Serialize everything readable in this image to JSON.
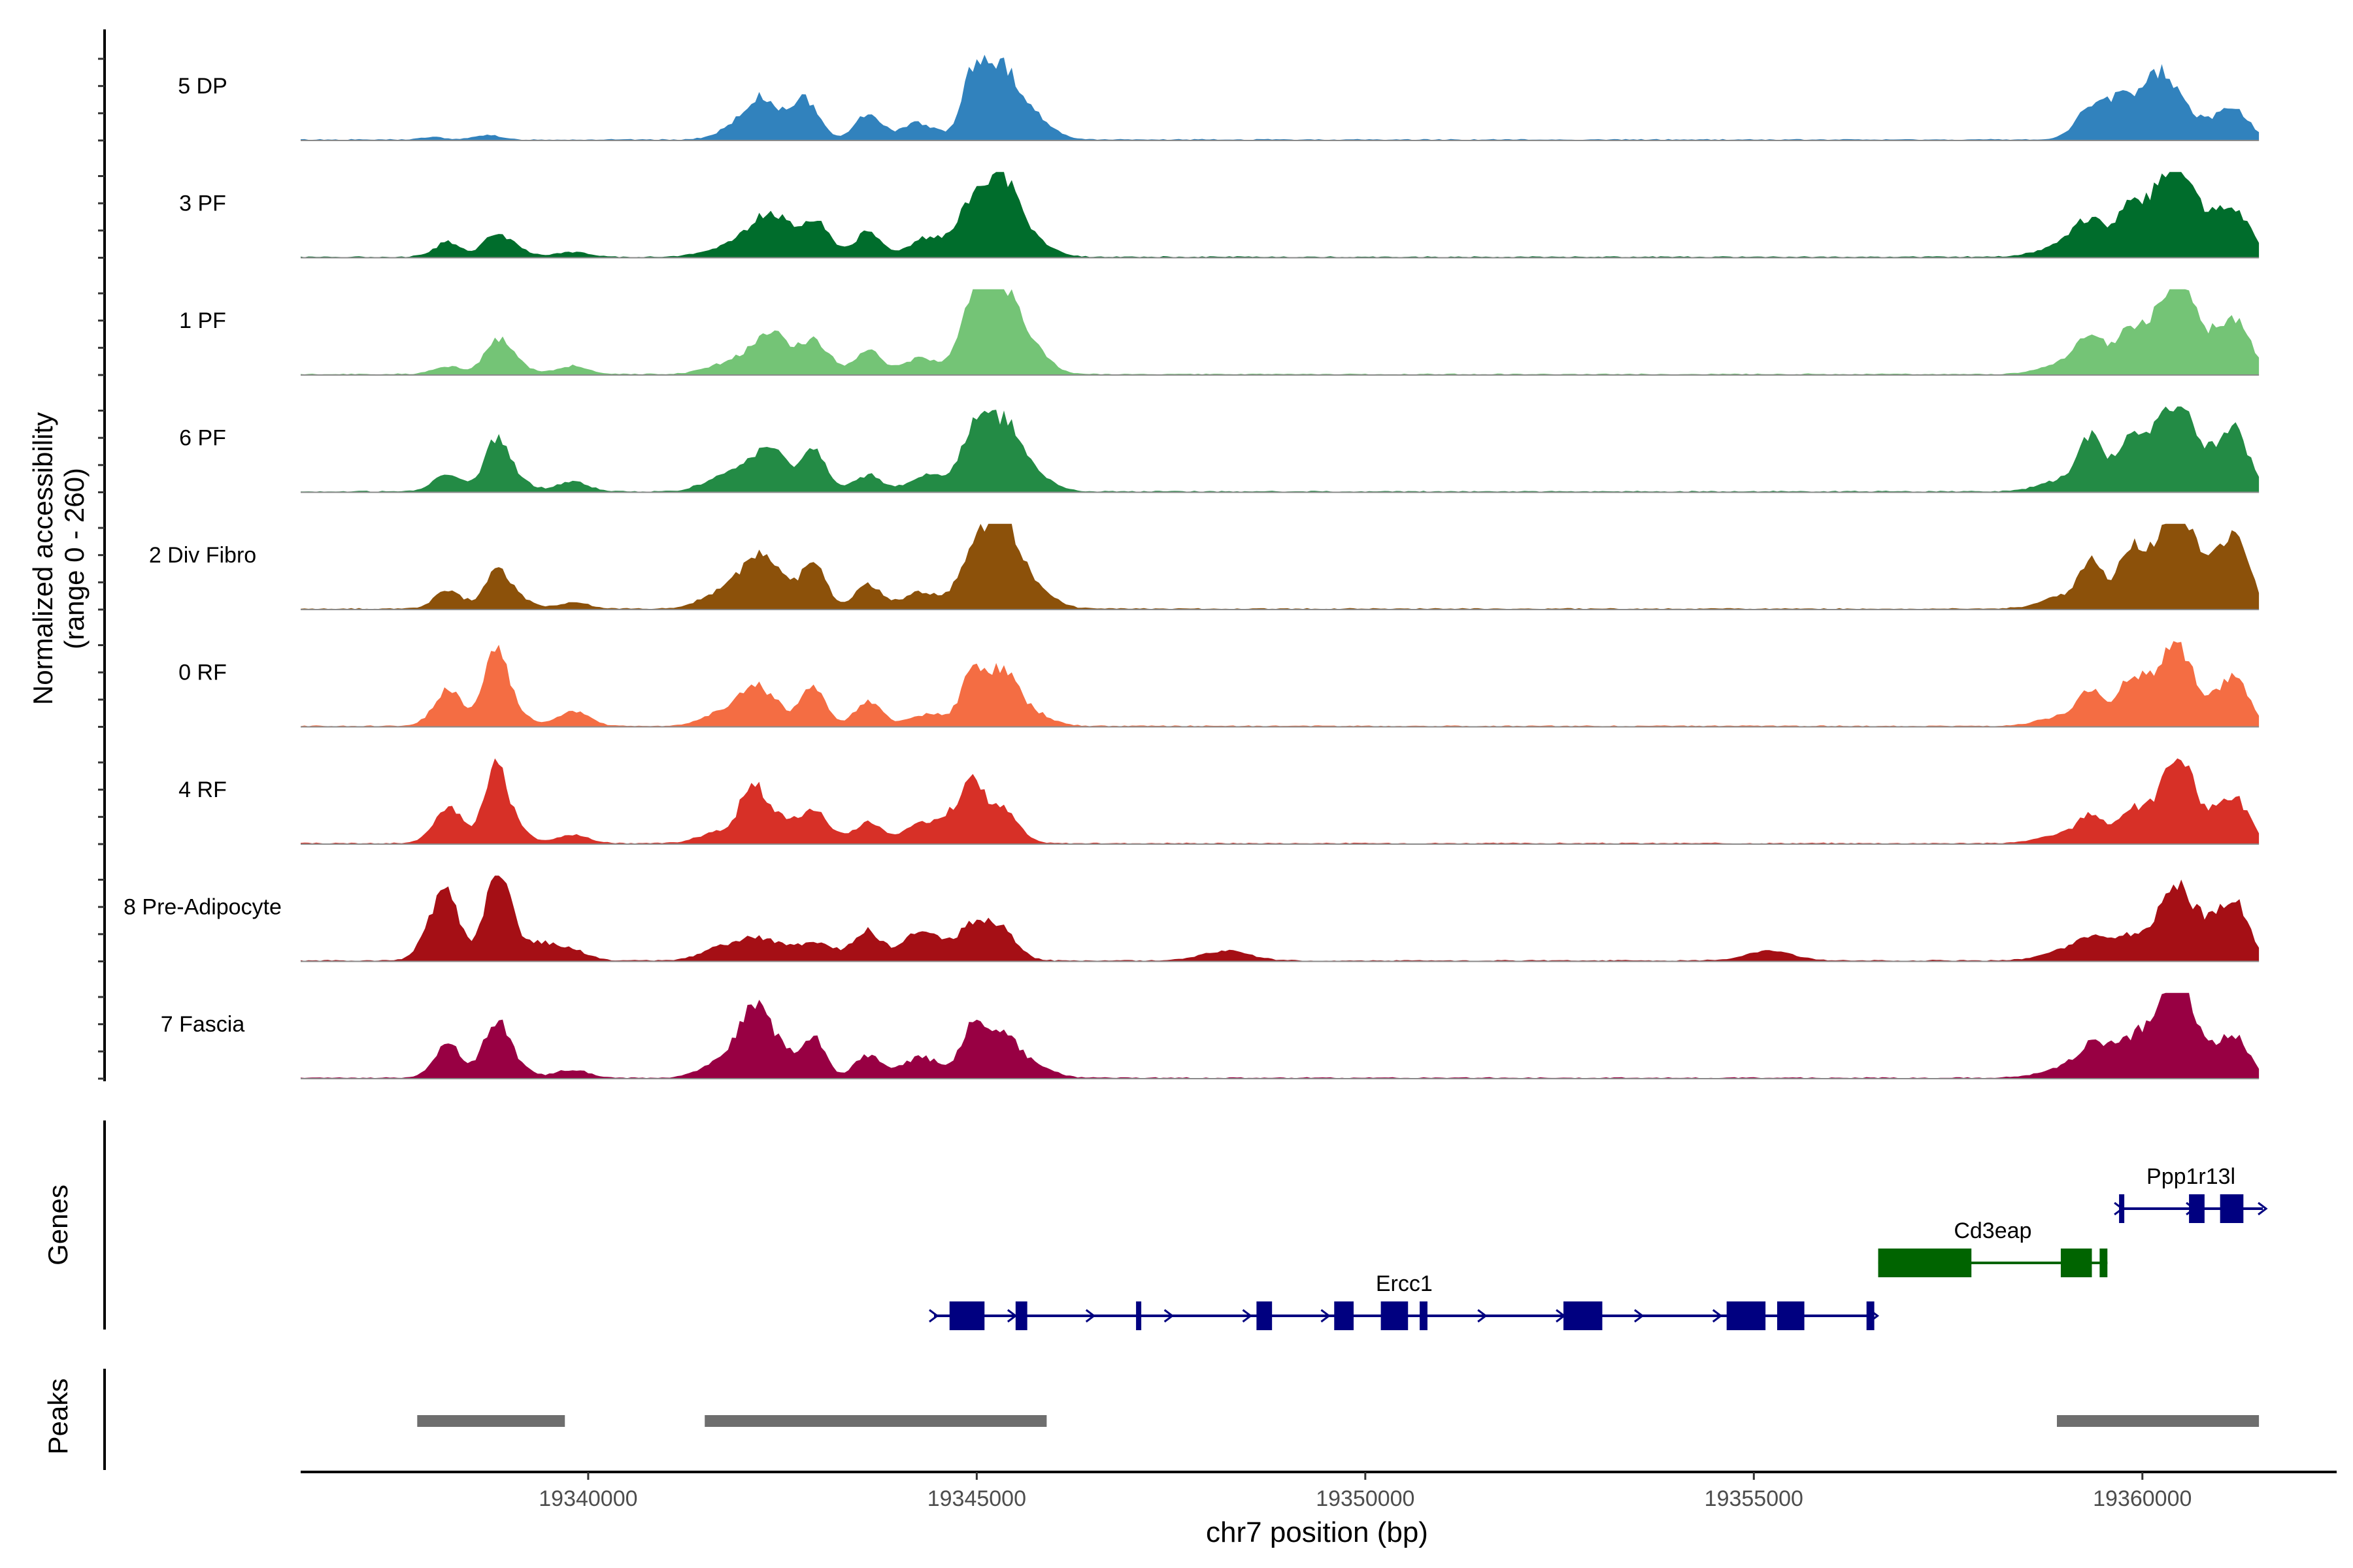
{
  "chart_data": {
    "type": "area",
    "xlabel": "chr7 position (bp)",
    "x_range": [
      19336300,
      19362500
    ],
    "x_ticks": [
      19340000,
      19345000,
      19350000,
      19355000,
      19360000
    ],
    "x_tick_labels": [
      "19340000",
      "19345000",
      "19350000",
      "19355000",
      "19360000"
    ],
    "coverage": {
      "ylabel_line1": "Normalized accessibility",
      "ylabel_line2": "(range 0 - 260)",
      "y_range": [
        0,
        260
      ],
      "track_start": 19336300,
      "track_end": 19361500,
      "tracks": [
        {
          "name": "5 DP",
          "color": "#3182BD",
          "peaks": [
            [
              19338000,
              0.03,
              150
            ],
            [
              19338700,
              0.06,
              150
            ],
            [
              19342000,
              0.22,
              250
            ],
            [
              19342300,
              0.4,
              200
            ],
            [
              19342800,
              0.48,
              170
            ],
            [
              19343600,
              0.3,
              170
            ],
            [
              19344250,
              0.2,
              220
            ],
            [
              19344950,
              0.68,
              150
            ],
            [
              19345300,
              0.86,
              220
            ],
            [
              19345750,
              0.25,
              230
            ],
            [
              19359350,
              0.4,
              200
            ],
            [
              19359700,
              0.32,
              150
            ],
            [
              19360000,
              0.4,
              200
            ],
            [
              19360300,
              0.62,
              200
            ],
            [
              19360800,
              0.22,
              300
            ],
            [
              19361200,
              0.3,
              180
            ]
          ]
        },
        {
          "name": "3 PF",
          "color": "#006D2C",
          "peaks": [
            [
              19338200,
              0.18,
              180
            ],
            [
              19338800,
              0.22,
              150
            ],
            [
              19339000,
              0.12,
              200
            ],
            [
              19339800,
              0.06,
              200
            ],
            [
              19341700,
              0.1,
              250
            ],
            [
              19342100,
              0.26,
              200
            ],
            [
              19342400,
              0.45,
              180
            ],
            [
              19342900,
              0.45,
              200
            ],
            [
              19343600,
              0.3,
              170
            ],
            [
              19344400,
              0.25,
              250
            ],
            [
              19344950,
              0.62,
              180
            ],
            [
              19345320,
              0.88,
              200
            ],
            [
              19345700,
              0.2,
              250
            ],
            [
              19359000,
              0.15,
              300
            ],
            [
              19359350,
              0.4,
              200
            ],
            [
              19359800,
              0.48,
              150
            ],
            [
              19360100,
              0.48,
              200
            ],
            [
              19360450,
              0.92,
              200
            ],
            [
              19360800,
              0.35,
              300
            ],
            [
              19361200,
              0.45,
              200
            ]
          ]
        },
        {
          "name": "1 PF",
          "color": "#74C476",
          "peaks": [
            [
              19338200,
              0.1,
              180
            ],
            [
              19338800,
              0.32,
              150
            ],
            [
              19339000,
              0.18,
              200
            ],
            [
              19339800,
              0.1,
              200
            ],
            [
              19341700,
              0.1,
              250
            ],
            [
              19342100,
              0.22,
              200
            ],
            [
              19342400,
              0.4,
              180
            ],
            [
              19342900,
              0.42,
              200
            ],
            [
              19343600,
              0.28,
              170
            ],
            [
              19344300,
              0.2,
              250
            ],
            [
              19344950,
              0.82,
              170
            ],
            [
              19345320,
              0.95,
              220
            ],
            [
              19345700,
              0.3,
              220
            ],
            [
              19359000,
              0.12,
              300
            ],
            [
              19359350,
              0.4,
              200
            ],
            [
              19359800,
              0.4,
              150
            ],
            [
              19360100,
              0.45,
              200
            ],
            [
              19360450,
              1.0,
              180
            ],
            [
              19360800,
              0.35,
              300
            ],
            [
              19361200,
              0.55,
              200
            ]
          ]
        },
        {
          "name": "6 PF",
          "color": "#238B45",
          "peaks": [
            [
              19338200,
              0.22,
              180
            ],
            [
              19338800,
              0.5,
              150
            ],
            [
              19339000,
              0.2,
              200
            ],
            [
              19339800,
              0.12,
              200
            ],
            [
              19341700,
              0.15,
              250
            ],
            [
              19342100,
              0.28,
              200
            ],
            [
              19342400,
              0.4,
              180
            ],
            [
              19342900,
              0.5,
              170
            ],
            [
              19343600,
              0.2,
              170
            ],
            [
              19344400,
              0.2,
              250
            ],
            [
              19344950,
              0.6,
              170
            ],
            [
              19345320,
              0.8,
              220
            ],
            [
              19345700,
              0.2,
              250
            ],
            [
              19359000,
              0.15,
              300
            ],
            [
              19359350,
              0.62,
              150
            ],
            [
              19359800,
              0.55,
              150
            ],
            [
              19360100,
              0.45,
              200
            ],
            [
              19360450,
              0.8,
              200
            ],
            [
              19360800,
              0.35,
              300
            ],
            [
              19361200,
              0.62,
              180
            ]
          ]
        },
        {
          "name": "2 Div Fibro",
          "color": "#8C510A",
          "peaks": [
            [
              19338200,
              0.22,
              180
            ],
            [
              19338800,
              0.35,
              150
            ],
            [
              19339000,
              0.18,
              200
            ],
            [
              19339800,
              0.08,
              200
            ],
            [
              19341700,
              0.2,
              250
            ],
            [
              19342100,
              0.45,
              180
            ],
            [
              19342400,
              0.4,
              200
            ],
            [
              19342900,
              0.62,
              150
            ],
            [
              19343600,
              0.3,
              170
            ],
            [
              19344300,
              0.2,
              250
            ],
            [
              19344950,
              0.65,
              180
            ],
            [
              19345320,
              1.0,
              200
            ],
            [
              19345700,
              0.3,
              250
            ],
            [
              19359000,
              0.15,
              300
            ],
            [
              19359350,
              0.5,
              150
            ],
            [
              19359800,
              0.55,
              150
            ],
            [
              19360100,
              0.5,
              200
            ],
            [
              19360450,
              0.92,
              200
            ],
            [
              19360800,
              0.4,
              300
            ],
            [
              19361200,
              0.72,
              180
            ]
          ]
        },
        {
          "name": "0 RF",
          "color": "#F46D43",
          "peaks": [
            [
              19338200,
              0.45,
              180
            ],
            [
              19338800,
              0.82,
              150
            ],
            [
              19339000,
              0.2,
              200
            ],
            [
              19339800,
              0.18,
              200
            ],
            [
              19341700,
              0.15,
              250
            ],
            [
              19342100,
              0.4,
              200
            ],
            [
              19342400,
              0.2,
              200
            ],
            [
              19342900,
              0.48,
              150
            ],
            [
              19343600,
              0.3,
              170
            ],
            [
              19344400,
              0.15,
              250
            ],
            [
              19344950,
              0.6,
              150
            ],
            [
              19345320,
              0.62,
              200
            ],
            [
              19345700,
              0.15,
              250
            ],
            [
              19359000,
              0.12,
              300
            ],
            [
              19359350,
              0.4,
              150
            ],
            [
              19359800,
              0.42,
              150
            ],
            [
              19360100,
              0.45,
              200
            ],
            [
              19360450,
              0.8,
              180
            ],
            [
              19360800,
              0.25,
              300
            ],
            [
              19361200,
              0.48,
              180
            ]
          ]
        },
        {
          "name": "4 RF",
          "color": "#D73027",
          "peaks": [
            [
              19338200,
              0.45,
              180
            ],
            [
              19338800,
              0.82,
              150
            ],
            [
              19339000,
              0.2,
              200
            ],
            [
              19339800,
              0.1,
              200
            ],
            [
              19341700,
              0.15,
              250
            ],
            [
              19342100,
              0.6,
              150
            ],
            [
              19342400,
              0.3,
              200
            ],
            [
              19342900,
              0.4,
              200
            ],
            [
              19343600,
              0.25,
              170
            ],
            [
              19344300,
              0.22,
              250
            ],
            [
              19344700,
              0.25,
              200
            ],
            [
              19344950,
              0.58,
              150
            ],
            [
              19345320,
              0.42,
              200
            ],
            [
              19359000,
              0.12,
              300
            ],
            [
              19359350,
              0.3,
              150
            ],
            [
              19359800,
              0.32,
              150
            ],
            [
              19360100,
              0.3,
              200
            ],
            [
              19360450,
              0.88,
              180
            ],
            [
              19360800,
              0.3,
              300
            ],
            [
              19361200,
              0.45,
              180
            ]
          ]
        },
        {
          "name": "8 Pre-Adipocyte",
          "color": "#A50F15",
          "peaks": [
            [
              19337950,
              0.3,
              150
            ],
            [
              19338200,
              0.8,
              150
            ],
            [
              19338800,
              0.95,
              150
            ],
            [
              19339000,
              0.3,
              150
            ],
            [
              19339400,
              0.2,
              200
            ],
            [
              19339800,
              0.12,
              200
            ],
            [
              19341700,
              0.15,
              250
            ],
            [
              19342200,
              0.25,
              250
            ],
            [
              19342900,
              0.2,
              300
            ],
            [
              19343600,
              0.35,
              170
            ],
            [
              19344300,
              0.35,
              250
            ],
            [
              19344950,
              0.4,
              200
            ],
            [
              19345320,
              0.35,
              200
            ],
            [
              19348200,
              0.12,
              300
            ],
            [
              19355200,
              0.12,
              300
            ],
            [
              19359000,
              0.12,
              300
            ],
            [
              19359400,
              0.25,
              200
            ],
            [
              19359900,
              0.3,
              200
            ],
            [
              19360400,
              0.75,
              200
            ],
            [
              19360800,
              0.4,
              300
            ],
            [
              19361200,
              0.58,
              180
            ]
          ]
        },
        {
          "name": "7 Fascia",
          "color": "#980043",
          "peaks": [
            [
              19338200,
              0.4,
              180
            ],
            [
              19338800,
              0.58,
              150
            ],
            [
              19339000,
              0.2,
              200
            ],
            [
              19339800,
              0.1,
              200
            ],
            [
              19341700,
              0.2,
              250
            ],
            [
              19342100,
              0.7,
              180
            ],
            [
              19342400,
              0.4,
              200
            ],
            [
              19342900,
              0.5,
              150
            ],
            [
              19343600,
              0.28,
              170
            ],
            [
              19344300,
              0.25,
              250
            ],
            [
              19344950,
              0.58,
              150
            ],
            [
              19345320,
              0.48,
              200
            ],
            [
              19345700,
              0.15,
              250
            ],
            [
              19359000,
              0.12,
              300
            ],
            [
              19359400,
              0.4,
              200
            ],
            [
              19359900,
              0.45,
              200
            ],
            [
              19360300,
              0.5,
              200
            ],
            [
              19360450,
              0.9,
              180
            ],
            [
              19360800,
              0.3,
              300
            ],
            [
              19361200,
              0.4,
              180
            ]
          ]
        }
      ]
    },
    "genes": {
      "label": "Genes",
      "items": [
        {
          "name": "Ppp1r13l",
          "color": "#000080",
          "start": 19359700,
          "end": 19361550,
          "strand": "+",
          "exons": [
            [
              19359700,
              19359750
            ],
            [
              19360600,
              19360800
            ],
            [
              19361000,
              19361300
            ]
          ]
        },
        {
          "name": "Cd3eap",
          "color": "#006400",
          "start": 19356600,
          "end": 19359550,
          "strand": "",
          "exons": [
            [
              19356600,
              19357800
            ],
            [
              19358950,
              19359350
            ],
            [
              19359450,
              19359550
            ]
          ]
        },
        {
          "name": "Ercc1",
          "color": "#000080",
          "start": 19344450,
          "end": 19356550,
          "strand": "+",
          "exons": [
            [
              19344650,
              19345100
            ],
            [
              19345500,
              19345650
            ],
            [
              19347050,
              19347100
            ],
            [
              19348600,
              19348800
            ],
            [
              19349600,
              19349850
            ],
            [
              19350200,
              19350550
            ],
            [
              19350700,
              19350800
            ],
            [
              19352550,
              19353050
            ],
            [
              19354650,
              19355150
            ],
            [
              19355300,
              19355650
            ],
            [
              19356450,
              19356550
            ]
          ]
        }
      ]
    },
    "peaks": {
      "label": "Peaks",
      "color": "#6E6E6E",
      "ranges": [
        [
          19337800,
          19339700
        ],
        [
          19341500,
          19345900
        ],
        [
          19358900,
          19361500
        ]
      ]
    }
  }
}
